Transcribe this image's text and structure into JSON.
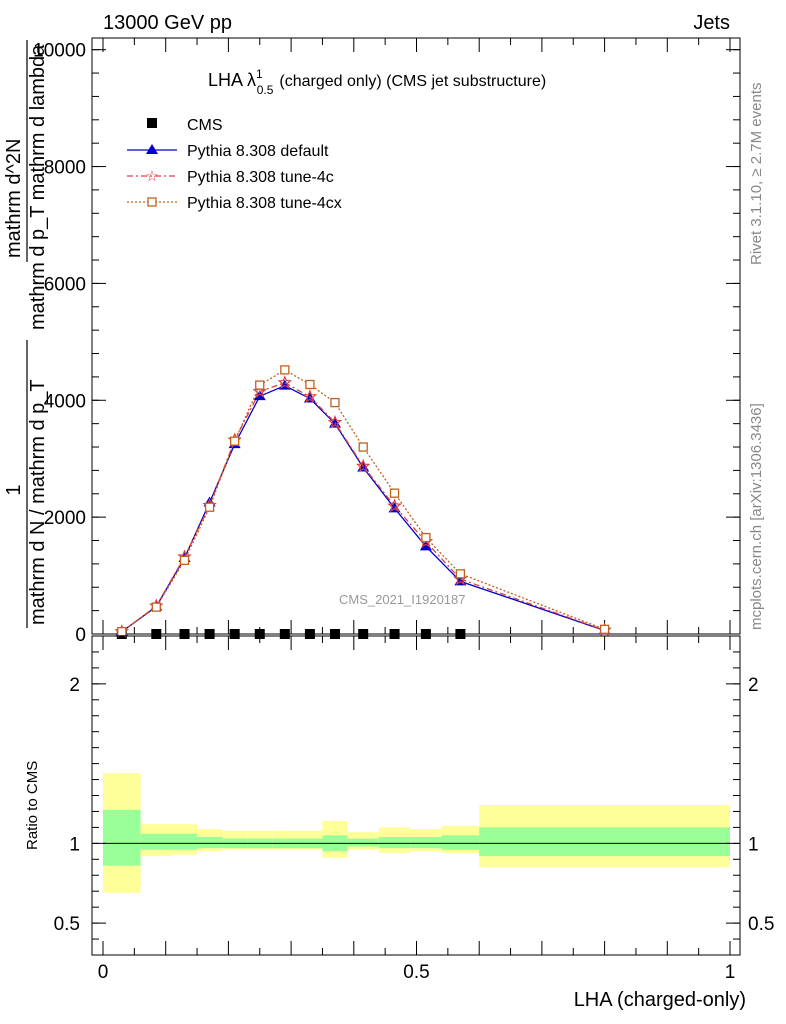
{
  "header": {
    "left": "13000 GeV pp",
    "right": "Jets"
  },
  "side_labels": {
    "rivet": "Rivet 3.1.10, ≥ 2.7M events",
    "mcplots": "mcplots.cern.ch [arXiv:1306.3436]"
  },
  "chart_data": [
    {
      "type": "line",
      "title": "LHA λ",
      "title_sup": "1",
      "title_sub": "0.5",
      "title_rest": "(charged only) (CMS jet substructure)",
      "watermark": "CMS_2021_I1920187",
      "ylabel_num": "1",
      "ylabel_den": "mathrm d N / mathrm d p_T",
      "ylabel_right_num": "mathrm d^2N",
      "ylabel_right_den": "mathrm d p_T mathrm d lambda",
      "yticks": [
        {
          "v": 0,
          "label": "0"
        },
        {
          "v": 2000,
          "label": "2000"
        },
        {
          "v": 4000,
          "label": "4000"
        },
        {
          "v": 6000,
          "label": "6000"
        },
        {
          "v": 8000,
          "label": "8000"
        },
        {
          "v": 10000,
          "label": "10000"
        }
      ],
      "xlim": [
        0,
        1
      ],
      "ylim": [
        0,
        10200
      ],
      "legend_position": "top-left",
      "series": [
        {
          "name": "CMS",
          "color": "#000000",
          "marker": "square",
          "x": [
            0.03,
            0.085,
            0.13,
            0.17,
            0.21,
            0.25,
            0.29,
            0.33,
            0.37,
            0.415,
            0.465,
            0.515,
            0.57
          ],
          "y": [
            0,
            0,
            0,
            0,
            0,
            0,
            0,
            0,
            0,
            0,
            0,
            0,
            0
          ]
        },
        {
          "name": "Pythia 8.308 default",
          "color": "#0000cc",
          "marker": "triangle",
          "dash": "",
          "x": [
            0.03,
            0.085,
            0.13,
            0.17,
            0.21,
            0.25,
            0.29,
            0.33,
            0.37,
            0.415,
            0.465,
            0.515,
            0.57,
            0.8
          ],
          "y": [
            40,
            470,
            1300,
            2250,
            3250,
            4070,
            4250,
            4030,
            3600,
            2850,
            2150,
            1500,
            900,
            60
          ]
        },
        {
          "name": "Pythia 8.308 tune-4c",
          "color": "#e04040",
          "marker": "star",
          "dash": "6,3,2,3",
          "x": [
            0.03,
            0.085,
            0.13,
            0.17,
            0.21,
            0.25,
            0.29,
            0.33,
            0.37,
            0.415,
            0.465,
            0.515,
            0.57,
            0.8
          ],
          "y": [
            40,
            480,
            1320,
            2200,
            3320,
            4150,
            4300,
            4060,
            3620,
            2870,
            2190,
            1580,
            940,
            65
          ]
        },
        {
          "name": "Pythia 8.308 tune-4cx",
          "color": "#c06020",
          "marker": "open-square",
          "dash": "2,2",
          "x": [
            0.03,
            0.085,
            0.13,
            0.17,
            0.21,
            0.25,
            0.29,
            0.33,
            0.37,
            0.415,
            0.465,
            0.515,
            0.57,
            0.8
          ],
          "y": [
            40,
            460,
            1260,
            2170,
            3300,
            4260,
            4520,
            4270,
            3960,
            3200,
            2410,
            1650,
            1030,
            80
          ]
        }
      ]
    },
    {
      "type": "area",
      "ylabel": "Ratio to CMS",
      "xlabel": "LHA (charged-only)",
      "ylim": [
        0.3,
        2.3
      ],
      "xlim": [
        0,
        1
      ],
      "reference_line": 1,
      "yticks": [
        {
          "v": 0.5,
          "label": "0.5"
        },
        {
          "v": 1,
          "label": "1"
        },
        {
          "v": 2,
          "label": "2"
        }
      ],
      "xticks": [
        {
          "v": 0,
          "label": "0"
        },
        {
          "v": 0.5,
          "label": "0.5"
        },
        {
          "v": 1,
          "label": "1"
        }
      ],
      "bands": {
        "inner_color": "#99ff99",
        "outer_color": "#ffff99",
        "bins": [
          {
            "x0": 0.0,
            "x1": 0.06,
            "in_lo": 0.86,
            "in_hi": 1.21,
            "out_lo": 0.69,
            "out_hi": 1.44
          },
          {
            "x0": 0.06,
            "x1": 0.11,
            "in_lo": 0.96,
            "in_hi": 1.06,
            "out_lo": 0.92,
            "out_hi": 1.12
          },
          {
            "x0": 0.11,
            "x1": 0.15,
            "in_lo": 0.96,
            "in_hi": 1.06,
            "out_lo": 0.93,
            "out_hi": 1.12
          },
          {
            "x0": 0.15,
            "x1": 0.19,
            "in_lo": 0.97,
            "in_hi": 1.04,
            "out_lo": 0.95,
            "out_hi": 1.09
          },
          {
            "x0": 0.19,
            "x1": 0.23,
            "in_lo": 0.97,
            "in_hi": 1.03,
            "out_lo": 0.96,
            "out_hi": 1.08
          },
          {
            "x0": 0.23,
            "x1": 0.27,
            "in_lo": 0.97,
            "in_hi": 1.03,
            "out_lo": 0.96,
            "out_hi": 1.08
          },
          {
            "x0": 0.27,
            "x1": 0.31,
            "in_lo": 0.97,
            "in_hi": 1.03,
            "out_lo": 0.96,
            "out_hi": 1.08
          },
          {
            "x0": 0.31,
            "x1": 0.35,
            "in_lo": 0.97,
            "in_hi": 1.03,
            "out_lo": 0.96,
            "out_hi": 1.08
          },
          {
            "x0": 0.35,
            "x1": 0.39,
            "in_lo": 0.95,
            "in_hi": 1.05,
            "out_lo": 0.91,
            "out_hi": 1.14
          },
          {
            "x0": 0.39,
            "x1": 0.44,
            "in_lo": 0.98,
            "in_hi": 1.03,
            "out_lo": 0.96,
            "out_hi": 1.07
          },
          {
            "x0": 0.44,
            "x1": 0.49,
            "in_lo": 0.97,
            "in_hi": 1.04,
            "out_lo": 0.94,
            "out_hi": 1.1
          },
          {
            "x0": 0.49,
            "x1": 0.54,
            "in_lo": 0.97,
            "in_hi": 1.04,
            "out_lo": 0.95,
            "out_hi": 1.09
          },
          {
            "x0": 0.54,
            "x1": 0.6,
            "in_lo": 0.96,
            "in_hi": 1.05,
            "out_lo": 0.94,
            "out_hi": 1.11
          },
          {
            "x0": 0.6,
            "x1": 1.0,
            "in_lo": 0.92,
            "in_hi": 1.1,
            "out_lo": 0.85,
            "out_hi": 1.24
          }
        ]
      }
    }
  ]
}
